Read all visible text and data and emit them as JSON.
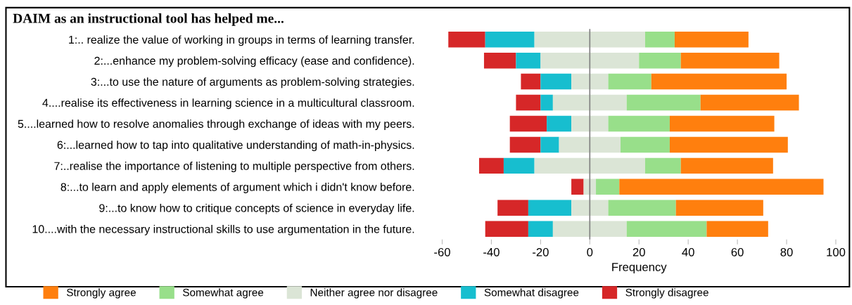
{
  "chart_data": {
    "type": "bar",
    "orientation": "horizontal",
    "title": "DAIM as an instructional tool has helped me...",
    "xlabel": "Frequency",
    "categories": [
      "1:.. realize the value of working in groups in terms of learning transfer.",
      "2:...enhance my problem-solving efficacy (ease and confidence).",
      "3:...to use the nature of arguments as problem-solving strategies.",
      "4....realise its effectiveness in learning science in a multicultural classroom.",
      "5....learned how to resolve anomalies through exchange of ideas with my peers.",
      "6:...learned how to tap into qualitative understanding of math-in-physics.",
      "7:..realise the importance of listening to multiple perspective from others.",
      "8:...to learn and apply elements of argument which i didn't know before.",
      "9:...to know how to critique concepts of science in everyday life.",
      "10....with the necessary instructional skills to use argumentation in the future."
    ],
    "series": [
      {
        "name": "Strongly disagree",
        "color": "#d62728",
        "values": [
          15,
          13,
          8,
          10,
          15,
          12.5,
          10,
          5,
          12.5,
          17.5
        ],
        "base": [
          -57.5,
          -43,
          -28,
          -30,
          -32.5,
          -32.5,
          -45,
          -7.5,
          -37.5,
          -42.5
        ]
      },
      {
        "name": "Somewhat disagree",
        "color": "#17becf",
        "values": [
          20,
          10,
          12.5,
          5,
          10,
          7.5,
          12.5,
          null,
          17.5,
          10
        ],
        "base": [
          -42.5,
          -30,
          -20,
          -20,
          -17.5,
          -20,
          -35,
          null,
          -25,
          -25
        ]
      },
      {
        "name": "Neither agree nor disagree",
        "color": "#dbe5d6",
        "values": [
          45,
          40,
          15,
          30,
          15,
          25,
          45,
          5,
          15,
          30
        ],
        "base": [
          -22.5,
          -20,
          -7.5,
          -15,
          -7.5,
          -12.5,
          -22.5,
          -2.5,
          -7.5,
          -15
        ]
      },
      {
        "name": "Somewhat agree",
        "color": "#98df8a",
        "values": [
          12,
          17,
          17.5,
          30,
          25,
          20,
          14.5,
          9.5,
          27.5,
          32.5
        ],
        "base": [
          22.5,
          20,
          7.5,
          15,
          7.5,
          12.5,
          22.5,
          2.5,
          7.5,
          15
        ]
      },
      {
        "name": "Strongly agree",
        "color": "#ff7f0e",
        "values": [
          30,
          40,
          55,
          40,
          42.5,
          48,
          37.5,
          83,
          35.5,
          25
        ],
        "base": [
          34.5,
          37,
          25,
          45,
          32.5,
          32.5,
          37,
          12,
          35,
          47.5
        ]
      }
    ],
    "xlim": [
      -60,
      100
    ],
    "xticks": [
      -60,
      -40,
      -20,
      0,
      20,
      40,
      60,
      80,
      100
    ],
    "ref_lines": [
      {
        "axis": "x",
        "value": 0,
        "color": "#808080"
      }
    ],
    "legend": "bottom",
    "grid": false
  }
}
